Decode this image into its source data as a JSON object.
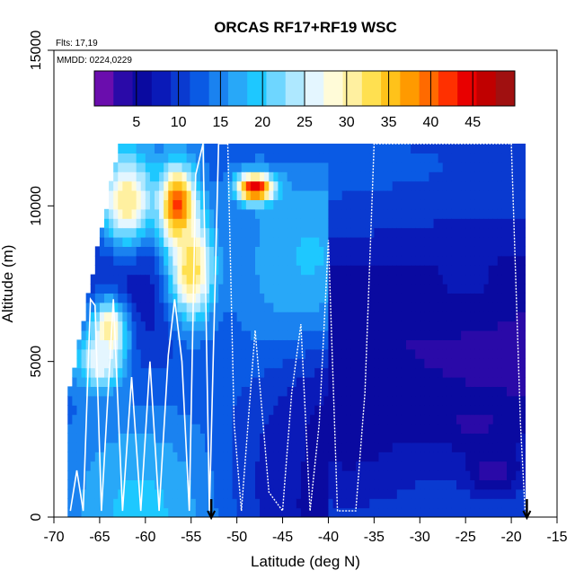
{
  "chart_data": {
    "type": "heatmap",
    "title": "ORCAS RF17+RF19 WSC",
    "notes": {
      "flights": "Flts: 17,19",
      "dates": "MMDD: 0224,0229"
    },
    "xlabel": "Latitude (deg N)",
    "ylabel": "Altitude (m)",
    "xlim": [
      -70,
      -15
    ],
    "ylim": [
      0,
      15000
    ],
    "x_ticks": [
      -70,
      -65,
      -60,
      -55,
      -50,
      -45,
      -40,
      -35,
      -30,
      -25,
      -20,
      -15
    ],
    "x_tick_labels": [
      "-70",
      "-65",
      "-60",
      "-55",
      "-50",
      "-45",
      "-40",
      "-35",
      "-30",
      "-25",
      "-20",
      "-15"
    ],
    "y_ticks": [
      0,
      5000,
      10000,
      15000
    ],
    "y_tick_labels": [
      "0",
      "5000",
      "10000",
      "15000"
    ],
    "colorbar": {
      "range": [
        0,
        50
      ],
      "ticks": [
        5,
        10,
        15,
        20,
        25,
        30,
        35,
        40,
        45
      ],
      "tick_labels": [
        "5",
        "10",
        "15",
        "20",
        "25",
        "30",
        "35",
        "40",
        "45"
      ],
      "colors": [
        "#6a0dad",
        "#2a0aa8",
        "#0a0aa0",
        "#0a1ab8",
        "#0a3ad0",
        "#0a5ae4",
        "#1a82f0",
        "#28a8f8",
        "#1ec8ff",
        "#6ed6ff",
        "#aee8ff",
        "#e4f6ff",
        "#fffbd8",
        "#fff0a0",
        "#ffe050",
        "#ffc21a",
        "#ff9a00",
        "#ff6a00",
        "#ff3000",
        "#e80000",
        "#c00000",
        "#a01010"
      ]
    },
    "heatmap_lat_range": [
      -68.5,
      -18.5
    ],
    "heatmap_alt_range": [
      0,
      12000
    ],
    "regions": [
      {
        "lat": -56.5,
        "alt": 10000,
        "value": 44,
        "width_lat": 4,
        "height_alt": 2500
      },
      {
        "lat": -48,
        "alt": 10600,
        "value": 46,
        "width_lat": 4,
        "height_alt": 900
      },
      {
        "lat": -62,
        "alt": 10200,
        "value": 32,
        "width_lat": 6,
        "height_alt": 3000
      },
      {
        "lat": -55,
        "alt": 8000,
        "value": 34,
        "width_lat": 5,
        "height_alt": 3500
      },
      {
        "lat": -64,
        "alt": 6000,
        "value": 32,
        "width_lat": 4,
        "height_alt": 2000
      },
      {
        "lat": -65,
        "alt": 5000,
        "value": 27,
        "width_lat": 5,
        "height_alt": 1800
      },
      {
        "lat": -38,
        "alt": 3000,
        "value": 6,
        "width_lat": 20,
        "height_alt": 6000
      },
      {
        "lat": -25,
        "alt": 7500,
        "value": 7,
        "width_lat": 14,
        "height_alt": 3000
      },
      {
        "lat": -22,
        "alt": 1500,
        "value": 3,
        "width_lat": 6,
        "height_alt": 1500
      },
      {
        "lat": -24,
        "alt": 3000,
        "value": 4,
        "width_lat": 8,
        "height_alt": 1500
      }
    ],
    "flight_tracks": [
      {
        "lat": [
          -68.2,
          -67.5,
          -66.8,
          -66.0,
          -65.5,
          -64.8,
          -63.5,
          -62.5,
          -61.5,
          -60.5,
          -59.5,
          -58.5,
          -57.5,
          -56.8,
          -56.0,
          -55.2,
          -54.5,
          -53.7,
          -53.0,
          -52.0,
          -51.0
        ],
        "alt": [
          200,
          1500,
          200,
          7000,
          6800,
          200,
          7000,
          200,
          4500,
          200,
          5000,
          200,
          5200,
          7000,
          5000,
          200,
          11000,
          12000,
          200,
          12000,
          12000
        ]
      },
      {
        "lat": [
          -51.0,
          -50.3,
          -49.5,
          -48.0,
          -46.5,
          -45.0,
          -44.0,
          -43.0,
          -42.0,
          -41.0,
          -40.0,
          -39.0,
          -38.0,
          -37.0,
          -36.0,
          -35.0,
          -30.0,
          -25.0,
          -20.0,
          -19.0,
          -18.5
        ],
        "alt": [
          12000,
          3000,
          200,
          6000,
          800,
          200,
          4000,
          6200,
          200,
          3000,
          8900,
          200,
          200,
          200,
          4000,
          12000,
          12000,
          12000,
          12000,
          3000,
          200
        ]
      }
    ],
    "markers_lat": [
      -52.8,
      -18.3
    ],
    "grid": false
  }
}
